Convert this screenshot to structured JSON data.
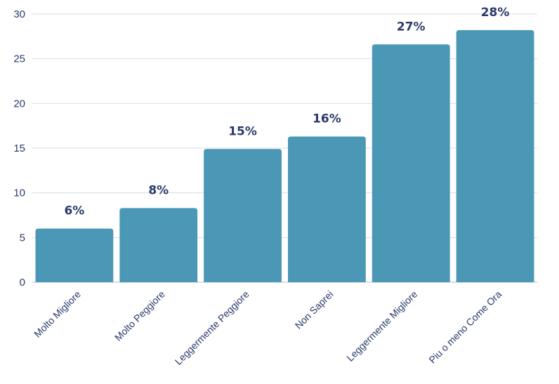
{
  "chart_data": {
    "type": "bar",
    "title": "",
    "xlabel": "",
    "ylabel": "",
    "categories": [
      "Molto Migliore",
      "Molto Peggiore",
      "Leggermente Peggiore",
      "Non Saprei",
      "Leggermente Migliore",
      "Piu o meno Come Ora"
    ],
    "values": [
      6,
      8.3,
      14.9,
      16.3,
      26.6,
      28.2
    ],
    "data_labels": [
      "6%",
      "8%",
      "15%",
      "16%",
      "27%",
      "28%"
    ],
    "ylim": [
      0,
      30
    ],
    "yticks": [
      0,
      5,
      10,
      15,
      20,
      25,
      30
    ],
    "grid": true,
    "legend": "none",
    "colors": {
      "bar": "#4a98b5",
      "label": "#2b3a6b",
      "grid": "#d9dce6"
    }
  }
}
